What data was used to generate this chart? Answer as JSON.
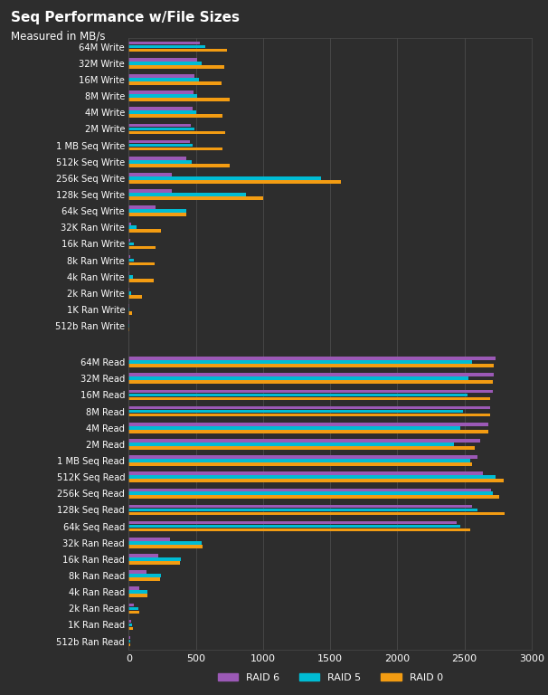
{
  "title": "Seq Performance w/File Sizes",
  "subtitle": "Measured in MB/s",
  "background_color": "#2d2d2d",
  "text_color": "#ffffff",
  "grid_color": "#4a4a4a",
  "bar_colors": {
    "RAID 6": "#9b59b6",
    "RAID 5": "#00bcd4",
    "RAID 0": "#f39c12"
  },
  "xlim": [
    0,
    3000
  ],
  "xticks": [
    0,
    500,
    1000,
    1500,
    2000,
    2500,
    3000
  ],
  "categories_write": [
    "64M Write",
    "32M Write",
    "16M Write",
    "8M Write",
    "4M Write",
    "2M Write",
    "1 MB Seq Write",
    "512k Seq Write",
    "256k Seq Write",
    "128k Seq Write",
    "64k Seq Write",
    "32K Ran Write",
    "16k Ran Write",
    "8k Ran Write",
    "4k Ran Write",
    "2k Ran Write",
    "1K Ran Write",
    "512b Ran Write"
  ],
  "categories_read": [
    "64M Read",
    "32M Read",
    "16M Read",
    "8M Read",
    "4M Read",
    "2M Read",
    "1 MB Seq Read",
    "512K Seq Read",
    "256k Seq Read",
    "128k Seq Read",
    "64k Seq Read",
    "32k Ran Read",
    "16k Ran Read",
    "8k Ran Read",
    "4k Ran Read",
    "2k Ran Read",
    "1K Ran Read",
    "512b Ran Read"
  ],
  "write_data": {
    "RAID 6": [
      530,
      510,
      490,
      480,
      475,
      460,
      455,
      430,
      320,
      320,
      200,
      15,
      10,
      8,
      6,
      4,
      2,
      1
    ],
    "RAID 5": [
      570,
      545,
      520,
      510,
      505,
      490,
      475,
      470,
      1430,
      870,
      430,
      55,
      40,
      35,
      30,
      18,
      5,
      2
    ],
    "RAID 0": [
      730,
      710,
      690,
      750,
      700,
      720,
      700,
      750,
      1580,
      1000,
      430,
      240,
      200,
      195,
      185,
      95,
      25,
      5
    ]
  },
  "read_data": {
    "RAID 6": [
      2730,
      2720,
      2710,
      2690,
      2680,
      2620,
      2600,
      2640,
      2700,
      2560,
      2440,
      310,
      220,
      130,
      75,
      35,
      18,
      8
    ],
    "RAID 5": [
      2560,
      2530,
      2520,
      2490,
      2470,
      2420,
      2540,
      2730,
      2710,
      2600,
      2470,
      540,
      390,
      240,
      140,
      70,
      25,
      10
    ],
    "RAID 0": [
      2720,
      2710,
      2690,
      2690,
      2680,
      2580,
      2560,
      2790,
      2760,
      2800,
      2540,
      550,
      380,
      230,
      140,
      75,
      28,
      10
    ]
  }
}
